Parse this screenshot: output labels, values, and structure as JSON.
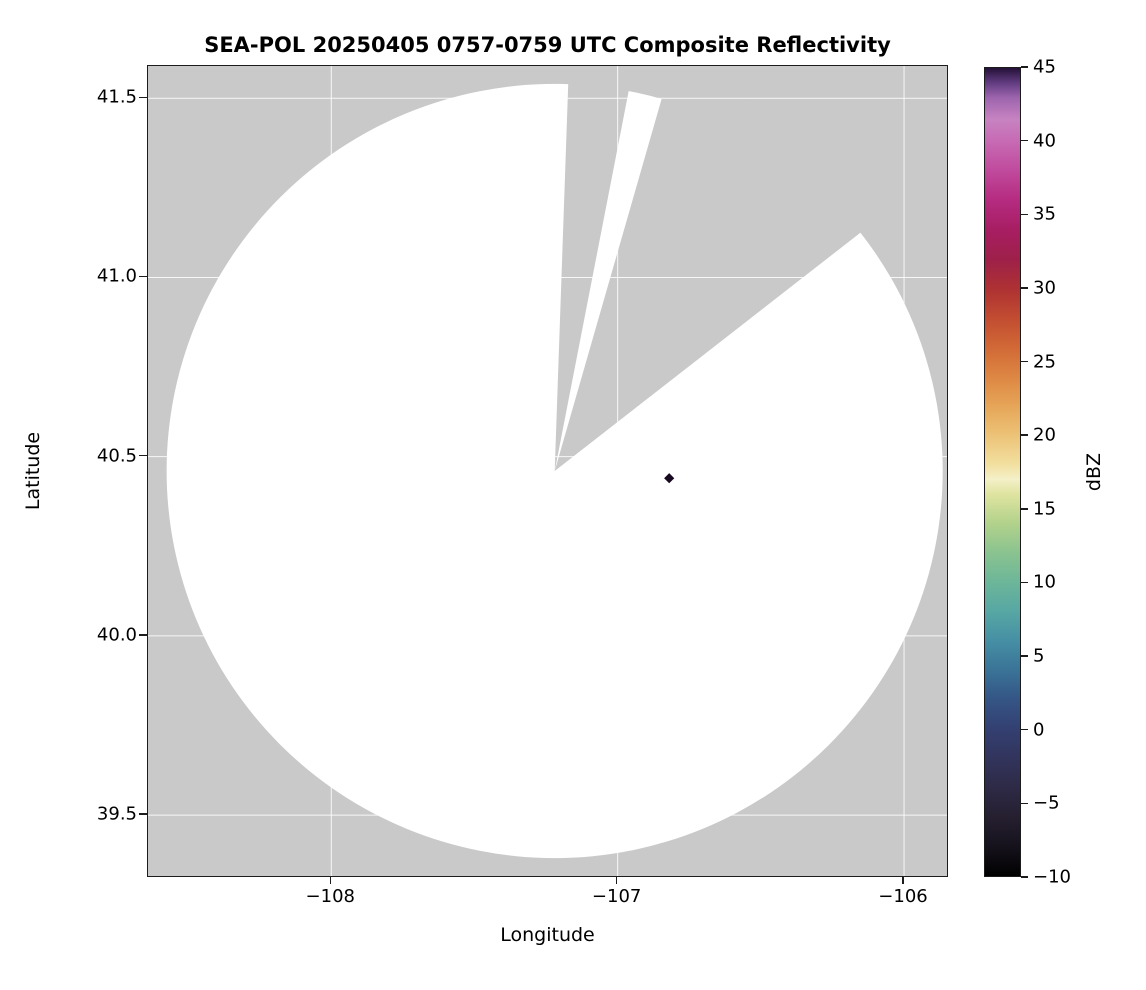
{
  "figure": {
    "background_color": "#ffffff",
    "axes_background_color": "#c9c9c9"
  },
  "chart_data": {
    "type": "heatmap",
    "title": "SEA-POL 20250405 0757-0759 UTC Composite Reflectivity",
    "xlabel": "Longitude",
    "ylabel": "Latitude",
    "xlim": [
      -108.64,
      -105.85
    ],
    "ylim": [
      39.33,
      41.59
    ],
    "xticks": [
      -108,
      -107,
      -106
    ],
    "xtick_labels": [
      "−108",
      "−107",
      "−106"
    ],
    "yticks": [
      39.5,
      40.0,
      40.5,
      41.0,
      41.5
    ],
    "ytick_labels": [
      "39.5",
      "40.0",
      "40.5",
      "41.0",
      "41.5"
    ],
    "grid": true,
    "grid_color": "rgba(255,255,255,0.85)",
    "radar_coverage": {
      "center_lon": -107.22,
      "center_lat": 40.46,
      "radius_lon_deg": 1.355,
      "radius_lat_deg": 1.08,
      "coverage_color": "#ffffff",
      "no_coverage_color": "#c9c9c9",
      "blocked_sectors_azimuth_deg": [
        [
          2,
          12
        ],
        [
          16,
          53
        ]
      ]
    },
    "point": {
      "lon": -106.82,
      "lat": 40.44,
      "color": "#17091f",
      "marker": "diamond"
    },
    "colorbar": {
      "label": "dBZ",
      "min": -10,
      "max": 45,
      "ticks": [
        45,
        40,
        35,
        30,
        25,
        20,
        15,
        10,
        5,
        0,
        -5,
        -10
      ],
      "tick_labels": [
        "45",
        "40",
        "35",
        "30",
        "25",
        "20",
        "15",
        "10",
        "5",
        "0",
        "−5",
        "−10"
      ],
      "stops": [
        [
          -10,
          "#000000"
        ],
        [
          -8,
          "#16121c"
        ],
        [
          -6,
          "#251f30"
        ],
        [
          -4,
          "#2e2a46"
        ],
        [
          -2,
          "#32345c"
        ],
        [
          0,
          "#334071"
        ],
        [
          2,
          "#345585"
        ],
        [
          4,
          "#3a7397"
        ],
        [
          6,
          "#468fa4"
        ],
        [
          8,
          "#57a7a4"
        ],
        [
          10,
          "#6cb699"
        ],
        [
          12,
          "#8ac390"
        ],
        [
          14,
          "#b2d28b"
        ],
        [
          16,
          "#dfe4a0"
        ],
        [
          17,
          "#f4f0c8"
        ],
        [
          18,
          "#f2e0a0"
        ],
        [
          20,
          "#ecc377"
        ],
        [
          22,
          "#e6a558"
        ],
        [
          24,
          "#dd8643"
        ],
        [
          26,
          "#d16836"
        ],
        [
          28,
          "#c14c31"
        ],
        [
          30,
          "#ad3133"
        ],
        [
          32,
          "#9e204a"
        ],
        [
          34,
          "#a81e63"
        ],
        [
          36,
          "#b52b80"
        ],
        [
          38,
          "#c04a9d"
        ],
        [
          40,
          "#c76ab4"
        ],
        [
          41.5,
          "#c783c1"
        ],
        [
          43,
          "#9c64ad"
        ],
        [
          44,
          "#613c80"
        ],
        [
          45,
          "#241138"
        ]
      ]
    }
  }
}
